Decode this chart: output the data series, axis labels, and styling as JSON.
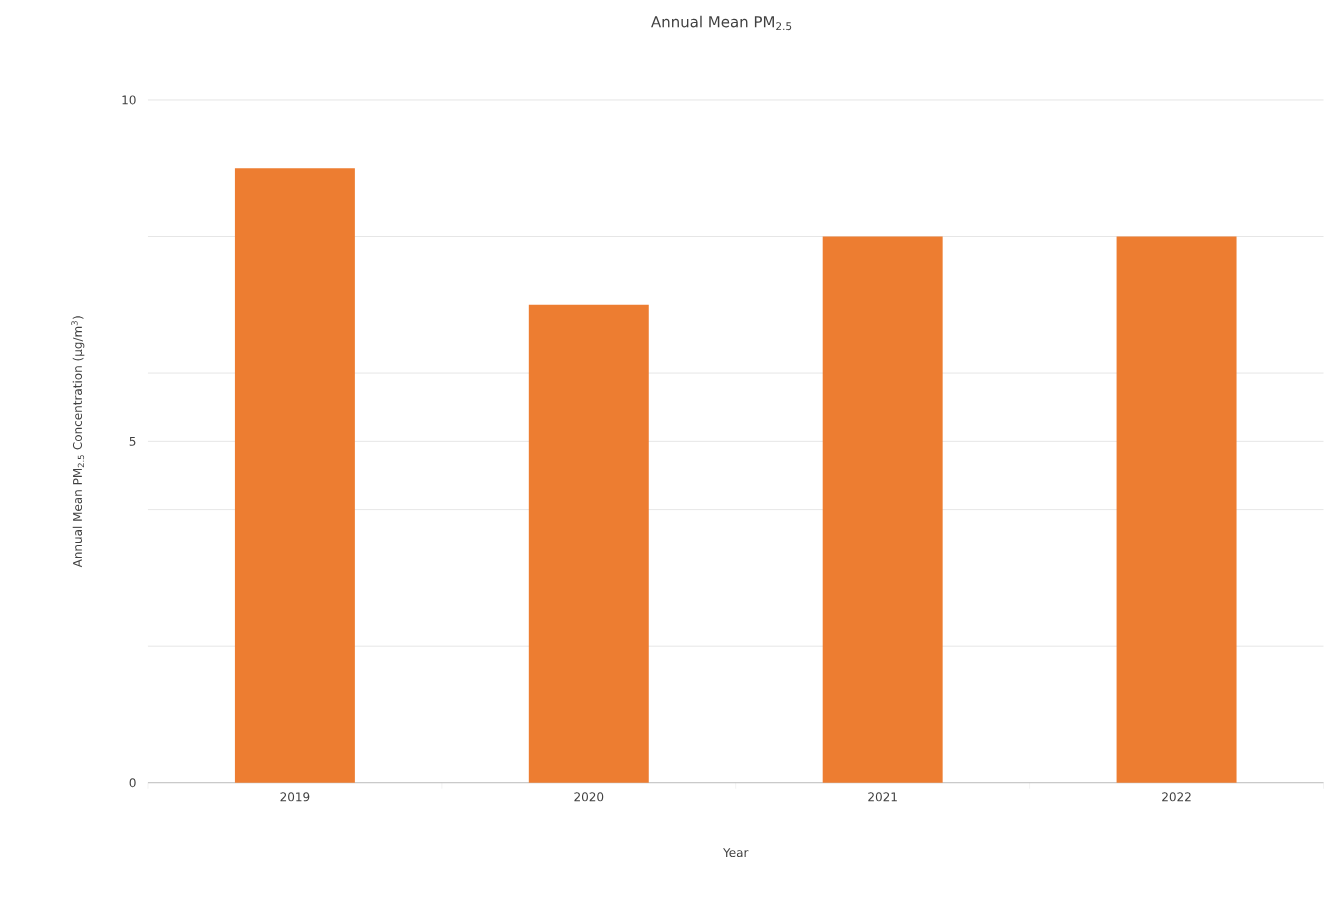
{
  "chart_data": {
    "type": "bar",
    "title": "Annual Mean PM$_{2.5}$",
    "xlabel": "Year",
    "ylabel": "Annual Mean PM$_{2.5}$ Concentration (µg/m$^{3}$)",
    "categories": [
      "2019",
      "2020",
      "2021",
      "2022"
    ],
    "values": [
      9,
      7,
      8,
      8
    ],
    "color": "#ed7d31",
    "ylim": [
      0,
      10
    ],
    "yticks": [
      0,
      {
        "value": 2,
        "label": null
      },
      {
        "value": 4,
        "label": null
      },
      5,
      {
        "value": 6,
        "label": null
      },
      {
        "value": 8,
        "label": null
      },
      10
    ],
    "grid": "y"
  }
}
